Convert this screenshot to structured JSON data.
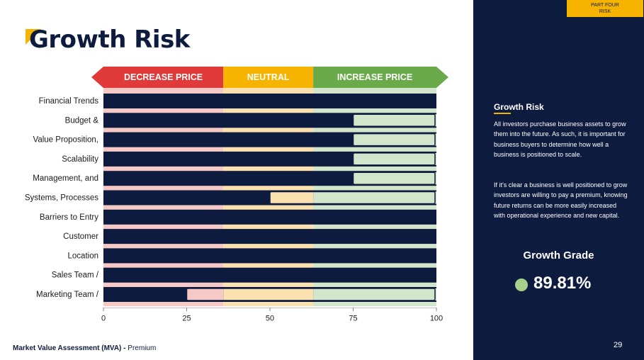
{
  "slide": {
    "title": "Growth Risk",
    "footer_bold": "Market Value Assessment (MVA) -",
    "footer_rest": " Premium",
    "page_number": "29"
  },
  "panel": {
    "part_line1": "PART FOUR",
    "part_line2": "RISK",
    "heading": "Growth Risk",
    "para1": "All investors purchase business assets to grow them into the future. As such, it is important for business buyers to determine how well a business is positioned to scale.",
    "para2": "If it's clear a business is well positioned to grow investors are willing to pay a premium, knowing future returns can be more easily increased with operational experience and new capital.",
    "grade_label": "Growth Grade",
    "grade_value": "89.81%"
  },
  "colors": {
    "navy": "#0d1b3e",
    "decrease": "#e03a3a",
    "neutral": "#f6b400",
    "increase": "#6aaa4b",
    "grade_dot": "#a8d08d"
  },
  "chart_data": {
    "type": "bar",
    "orientation": "horizontal",
    "categories": [
      "Financial Trends",
      "Budget &",
      "Value Proposition,",
      "Scalability",
      "Management, and",
      "Systems, Processes",
      "Barriers to Entry",
      "Customer",
      "Location",
      "Sales Team /",
      "Marketing Team /"
    ],
    "values": [
      100,
      75,
      75,
      75,
      75,
      50,
      100,
      100,
      100,
      100,
      25
    ],
    "xlim": [
      0,
      100
    ],
    "xticks": [
      0,
      25,
      50,
      75,
      100
    ],
    "zones": [
      {
        "label": "DECREASE PRICE",
        "from": 0,
        "to": 36,
        "color": "#e03a3a",
        "band": "#f6c8c6"
      },
      {
        "label": "NEUTRAL",
        "from": 36,
        "to": 63,
        "color": "#f6b400",
        "band": "#fbe0b0"
      },
      {
        "label": "INCREASE PRICE",
        "from": 63,
        "to": 100,
        "color": "#6aaa4b",
        "band": "#d3e6cb"
      }
    ]
  }
}
